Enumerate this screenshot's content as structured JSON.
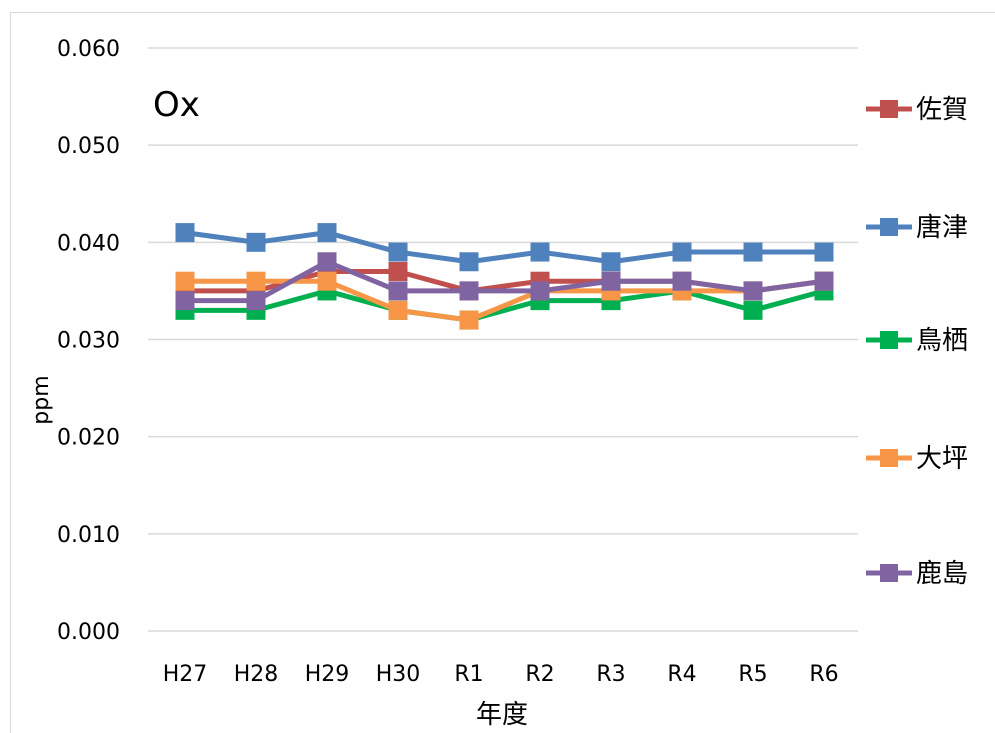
{
  "chart_data": {
    "type": "line",
    "title": "Ox",
    "xlabel": "年度",
    "ylabel": "ppm",
    "categories": [
      "H27",
      "H28",
      "H29",
      "H30",
      "R1",
      "R2",
      "R3",
      "R4",
      "R5",
      "R6"
    ],
    "ylim": [
      0,
      0.06
    ],
    "yticks": [
      "0.000",
      "0.010",
      "0.020",
      "0.030",
      "0.040",
      "0.050",
      "0.060"
    ],
    "grid": true,
    "legend_position": "right",
    "series": [
      {
        "name": "佐賀",
        "color": "#c0504d",
        "values": [
          0.035,
          0.035,
          0.037,
          0.037,
          0.035,
          0.036,
          0.036,
          0.036,
          0.035,
          0.036
        ]
      },
      {
        "name": "唐津",
        "color": "#4f81bd",
        "values": [
          0.041,
          0.04,
          0.041,
          0.039,
          0.038,
          0.039,
          0.038,
          0.039,
          0.039,
          0.039
        ]
      },
      {
        "name": "鳥栖",
        "color": "#00b050",
        "values": [
          0.033,
          0.033,
          0.035,
          0.033,
          0.032,
          0.034,
          0.034,
          0.035,
          0.033,
          0.035
        ]
      },
      {
        "name": "大坪",
        "color": "#f79646",
        "values": [
          0.036,
          0.036,
          0.036,
          0.033,
          0.032,
          0.035,
          0.035,
          0.035,
          0.035,
          0.036
        ]
      },
      {
        "name": "鹿島",
        "color": "#8064a2",
        "values": [
          0.034,
          0.034,
          0.038,
          0.035,
          0.035,
          0.035,
          0.036,
          0.036,
          0.035,
          0.036
        ]
      }
    ]
  }
}
